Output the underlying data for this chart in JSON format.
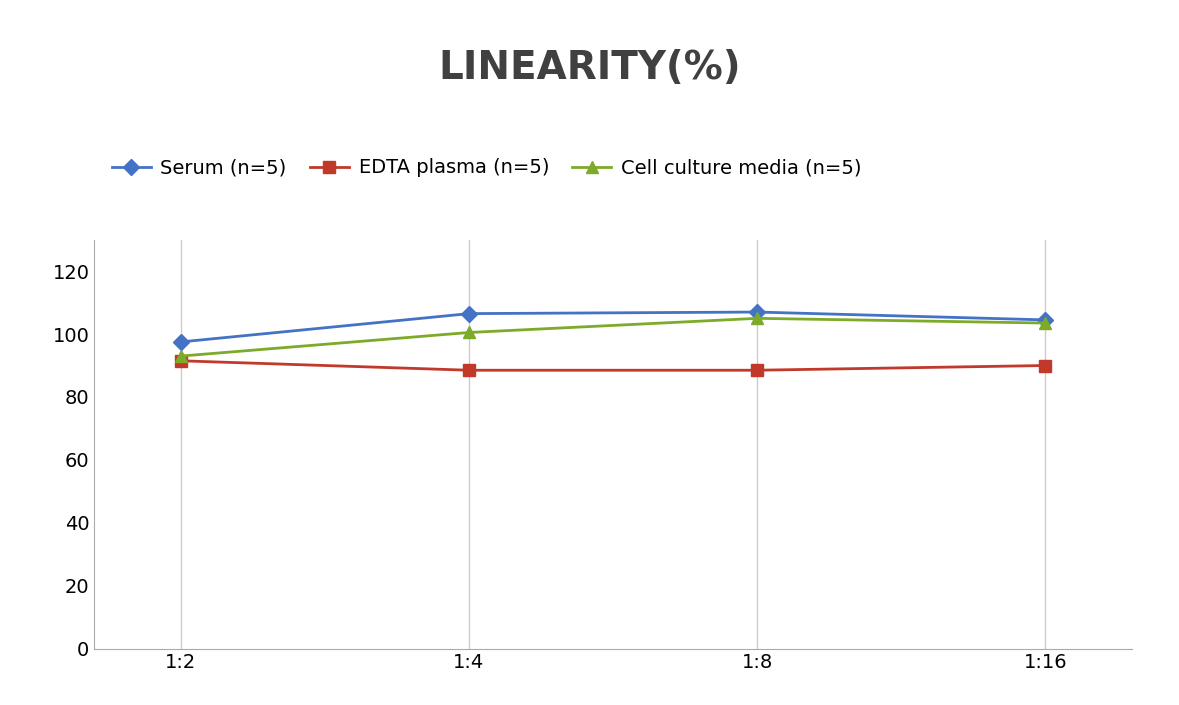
{
  "title": "LINEARITY(%)",
  "title_fontsize": 28,
  "title_fontweight": "bold",
  "title_color": "#404040",
  "x_labels": [
    "1:2",
    "1:4",
    "1:8",
    "1:16"
  ],
  "x_values": [
    0,
    1,
    2,
    3
  ],
  "series": [
    {
      "label": "Serum (n=5)",
      "values": [
        97.5,
        106.5,
        107.0,
        104.5
      ],
      "color": "#4472C4",
      "marker": "D",
      "marker_size": 8,
      "linewidth": 2
    },
    {
      "label": "EDTA plasma (n=5)",
      "values": [
        91.5,
        88.5,
        88.5,
        90.0
      ],
      "color": "#C0392B",
      "marker": "s",
      "marker_size": 8,
      "linewidth": 2
    },
    {
      "label": "Cell culture media (n=5)",
      "values": [
        93.0,
        100.5,
        105.0,
        103.5
      ],
      "color": "#7EAA2A",
      "marker": "^",
      "marker_size": 9,
      "linewidth": 2
    }
  ],
  "ylim": [
    0,
    130
  ],
  "yticks": [
    0,
    20,
    40,
    60,
    80,
    100,
    120
  ],
  "grid_color": "#CCCCCC",
  "background_color": "#FFFFFF",
  "legend_fontsize": 14,
  "tick_fontsize": 14
}
